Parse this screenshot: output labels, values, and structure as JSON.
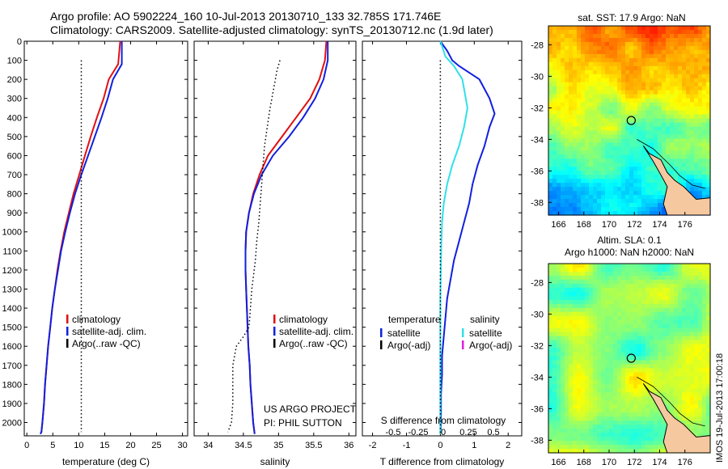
{
  "header": {
    "line1": "Argo profile: AO 5902224_160 10-Jul-2013 20130710_133 32.785S 171.746E",
    "line2": "Climatology: CARS2009. Satellite-adjusted climatology: synTS_20130712.nc (1.9d later)"
  },
  "colors": {
    "climatology": "#e01010",
    "satellite": "#1020e0",
    "argo": "#000000",
    "salinity_diff": "#30e0e8",
    "argo_adj_s": "#e020e0"
  },
  "chart_data": [
    {
      "type": "line",
      "name_key": "temperature",
      "xlabel": "temperature (deg C)",
      "ylabel": "",
      "xlim": [
        -0.5,
        31
      ],
      "ylim": [
        0,
        2070
      ],
      "xticks": [
        0,
        5,
        10,
        15,
        20,
        25,
        30
      ],
      "yticks": [
        0,
        100,
        200,
        300,
        400,
        500,
        600,
        700,
        800,
        900,
        1000,
        1100,
        1200,
        1300,
        1400,
        1500,
        1600,
        1700,
        1800,
        1900,
        2000
      ],
      "legend": {
        "placement": "lower-middle",
        "entries": [
          "climatology",
          "satellite-adj. clim.",
          "Argo(..raw -QC)"
        ]
      },
      "series": [
        {
          "name": "climatology",
          "color": "#e01010",
          "x": [
            18.0,
            17.6,
            15.8,
            14.8,
            13.5,
            12.3,
            11.2,
            10.1,
            9.0,
            8.1,
            7.2,
            6.5,
            5.9,
            5.4,
            4.9,
            4.5,
            4.1,
            3.8,
            3.5,
            3.3,
            3.0,
            2.8,
            2.6
          ],
          "y": [
            0,
            120,
            200,
            300,
            400,
            500,
            600,
            700,
            800,
            900,
            1000,
            1100,
            1200,
            1300,
            1400,
            1500,
            1600,
            1700,
            1800,
            1900,
            2000,
            2050,
            2060
          ]
        },
        {
          "name": "satellite-adj. clim.",
          "color": "#1020e0",
          "x": [
            18.3,
            18.3,
            16.6,
            15.6,
            14.4,
            13.1,
            11.8,
            10.5,
            9.3,
            8.3,
            7.4,
            6.6,
            6.0,
            5.4,
            4.9,
            4.5,
            4.1,
            3.8,
            3.5,
            3.3,
            3.0,
            2.8,
            2.6
          ],
          "y": [
            0,
            120,
            200,
            300,
            400,
            500,
            600,
            700,
            800,
            900,
            1000,
            1100,
            1200,
            1300,
            1400,
            1500,
            1600,
            1700,
            1800,
            1900,
            2000,
            2050,
            2060
          ]
        },
        {
          "name": "Argo(..raw -QC)",
          "color": "#000000",
          "style": "dotted",
          "x": [
            10.5,
            10.5,
            10.5,
            10.5,
            10.5,
            10.5,
            10.5,
            10.5,
            10.5,
            10.5,
            10.5,
            10.5,
            10.5,
            10.5,
            10.5,
            10.5,
            10.5,
            10.5,
            10.5,
            10.5,
            10.5
          ],
          "y": [
            100,
            200,
            300,
            400,
            500,
            600,
            700,
            800,
            900,
            1000,
            1100,
            1200,
            1300,
            1400,
            1500,
            1600,
            1700,
            1800,
            1900,
            2000,
            2050
          ]
        }
      ]
    },
    {
      "type": "line",
      "name_key": "salinity",
      "xlabel": "salinity",
      "xlim": [
        33.8,
        36.1
      ],
      "ylim": [
        0,
        2070
      ],
      "xticks": [
        34,
        34.5,
        35,
        35.5,
        36
      ],
      "xticklabels": [
        "34",
        "34.5",
        "35",
        "35.5",
        "36"
      ],
      "legend": {
        "placement": "lower-middle",
        "entries": [
          "climatology",
          "satellite-adj. clim.",
          "Argo(..raw -QC)"
        ]
      },
      "annotation": [
        "US ARGO PROJECT",
        "PI: PHIL SUTTON"
      ],
      "series": [
        {
          "name": "climatology",
          "color": "#e01010",
          "x": [
            35.68,
            35.66,
            35.58,
            35.45,
            35.25,
            35.05,
            34.85,
            34.73,
            34.64,
            34.58,
            34.54,
            34.53,
            34.53,
            34.54,
            34.55,
            34.56,
            34.57,
            34.59,
            34.6,
            34.62,
            34.64,
            34.66
          ],
          "y": [
            0,
            100,
            200,
            300,
            400,
            500,
            600,
            700,
            800,
            900,
            1000,
            1100,
            1200,
            1300,
            1400,
            1500,
            1600,
            1700,
            1800,
            1900,
            2000,
            2060
          ]
        },
        {
          "name": "satellite-adj. clim.",
          "color": "#1020e0",
          "x": [
            35.7,
            35.7,
            35.64,
            35.52,
            35.35,
            35.15,
            34.92,
            34.76,
            34.65,
            34.58,
            34.54,
            34.53,
            34.53,
            34.54,
            34.55,
            34.56,
            34.57,
            34.59,
            34.6,
            34.62,
            34.64,
            34.66
          ],
          "y": [
            0,
            100,
            200,
            300,
            400,
            500,
            600,
            700,
            800,
            900,
            1000,
            1100,
            1200,
            1300,
            1400,
            1500,
            1600,
            1700,
            1800,
            1900,
            2000,
            2060
          ]
        },
        {
          "name": "Argo(..raw -QC)",
          "color": "#000000",
          "style": "dotted",
          "x": [
            35.02,
            34.98,
            34.93,
            34.88,
            34.84,
            34.8,
            34.78,
            34.76,
            34.74,
            34.72,
            34.69,
            34.67,
            34.62,
            34.6,
            34.58,
            34.5,
            34.4,
            34.35,
            34.35,
            34.35,
            34.33,
            34.28
          ],
          "y": [
            100,
            150,
            250,
            350,
            450,
            550,
            650,
            750,
            850,
            950,
            1050,
            1150,
            1300,
            1400,
            1500,
            1550,
            1600,
            1700,
            1800,
            1900,
            2000,
            2050
          ]
        }
      ]
    },
    {
      "type": "line",
      "name_key": "difference",
      "xlabel": "T difference from climatology",
      "xlabel_top": "S difference from climatology",
      "xlim": [
        -2.3,
        2.4
      ],
      "ylim": [
        0,
        2070
      ],
      "xticks": [
        -2,
        -1,
        0,
        1,
        2
      ],
      "xticklabels": [
        "-2",
        "-1",
        "0",
        "1",
        "2"
      ],
      "sticks": [
        -0.5,
        -0.25,
        0,
        0.25,
        0.5
      ],
      "sticklabels": [
        "-0.5",
        "-0.25",
        "0",
        "0.25",
        "0.5"
      ],
      "legend": {
        "placement": "lower-middle",
        "groups": [
          {
            "heading": "temperature",
            "entries": [
              "satellite",
              "Argo(-adj)"
            ]
          },
          {
            "heading": "salinity",
            "entries": [
              "satellite",
              "Argo(-adj)"
            ]
          }
        ]
      },
      "series": [
        {
          "name": "temperature satellite",
          "color": "#1020e0",
          "x": [
            0.0,
            0.2,
            0.35,
            0.55,
            1.15,
            1.3,
            1.45,
            1.6,
            1.45,
            1.3,
            1.1,
            0.95,
            0.85,
            0.7,
            0.55,
            0.4,
            0.3,
            0.2,
            0.15,
            0.1,
            0.05,
            0.05,
            0.02,
            0.02,
            0.01,
            0.0
          ],
          "y": [
            0,
            50,
            100,
            130,
            200,
            250,
            300,
            380,
            450,
            550,
            650,
            750,
            850,
            950,
            1050,
            1150,
            1250,
            1350,
            1450,
            1550,
            1650,
            1750,
            1850,
            1950,
            2050,
            2060
          ]
        },
        {
          "name": "salinity satellite",
          "color": "#30e0e8",
          "x": [
            0.0,
            0.15,
            0.4,
            0.65,
            0.8,
            0.7,
            0.55,
            0.35,
            0.2,
            0.1,
            0.05,
            0.03,
            0.02,
            0.01,
            0.0,
            0.0,
            0.0,
            0.0,
            0.0,
            0.0,
            0.0
          ],
          "y": [
            0,
            80,
            130,
            200,
            350,
            450,
            550,
            650,
            750,
            850,
            950,
            1050,
            1150,
            1250,
            1350,
            1500,
            1650,
            1800,
            1950,
            2050,
            2060
          ]
        },
        {
          "name": "zero line",
          "color": "#000000",
          "style": "dotted",
          "x": [
            0,
            0
          ],
          "y": [
            100,
            2060
          ]
        }
      ]
    },
    {
      "type": "heatmap",
      "name_key": "sst_map",
      "title": "sat. SST: 17.9 Argo: NaN",
      "xticks": [
        166,
        168,
        170,
        172,
        174,
        176
      ],
      "yticks": [
        -28,
        -30,
        -32,
        -34,
        -36,
        -38
      ],
      "xlim": [
        165.2,
        178
      ],
      "ylim": [
        -38.8,
        -26.8
      ],
      "marker": {
        "lon": 171.75,
        "lat": -32.8
      }
    },
    {
      "type": "heatmap",
      "name_key": "sla_map",
      "title_line1": "Altim. SLA: 0.1",
      "title_line2": "Argo h1000: NaN h2000: NaN",
      "xticks": [
        166,
        168,
        170,
        172,
        174,
        176
      ],
      "yticks": [
        -28,
        -30,
        -32,
        -34,
        -36,
        -38
      ],
      "xlim": [
        165.2,
        178
      ],
      "ylim": [
        -38.8,
        -26.8
      ],
      "marker": {
        "lon": 171.75,
        "lat": -32.8
      }
    }
  ],
  "side_label": "IMOS 19-Jul-2013 17:00:18"
}
